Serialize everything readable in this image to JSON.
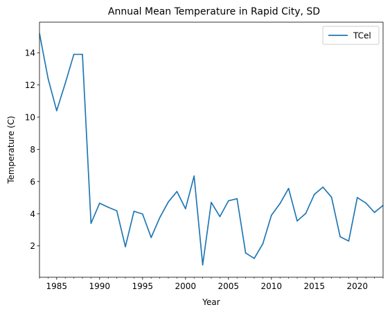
{
  "chart_data": {
    "type": "line",
    "title": "Annual Mean Temperature in Rapid City, SD",
    "xlabel": "Year",
    "ylabel": "Temperature (C)",
    "xlim": [
      1983,
      2023
    ],
    "ylim": [
      0.05,
      15.9
    ],
    "x_ticks": [
      1985,
      1990,
      1995,
      2000,
      2005,
      2010,
      2015,
      2020
    ],
    "y_ticks": [
      2,
      4,
      6,
      8,
      10,
      12,
      14
    ],
    "grid": false,
    "legend_position": "top-right",
    "line_color": "#1f77b4",
    "series": [
      {
        "name": "TCel",
        "x": [
          1983,
          1984,
          1985,
          1986,
          1987,
          1988,
          1989,
          1990,
          1991,
          1992,
          1993,
          1994,
          1995,
          1996,
          1997,
          1998,
          1999,
          2000,
          2001,
          2002,
          2003,
          2004,
          2005,
          2006,
          2007,
          2008,
          2009,
          2010,
          2011,
          2012,
          2013,
          2014,
          2015,
          2016,
          2017,
          2018,
          2019,
          2020,
          2021,
          2022,
          2023
        ],
        "values": [
          15.2,
          12.4,
          10.4,
          12.1,
          13.9,
          13.9,
          3.4,
          4.65,
          4.4,
          4.18,
          1.95,
          4.15,
          3.98,
          2.52,
          3.75,
          4.73,
          5.38,
          4.31,
          6.34,
          0.82,
          4.7,
          3.82,
          4.8,
          4.93,
          1.56,
          1.22,
          2.13,
          3.9,
          4.63,
          5.57,
          3.55,
          4.02,
          5.2,
          5.65,
          5.02,
          2.57,
          2.3,
          5.0,
          4.66,
          4.08,
          4.52
        ]
      }
    ]
  }
}
